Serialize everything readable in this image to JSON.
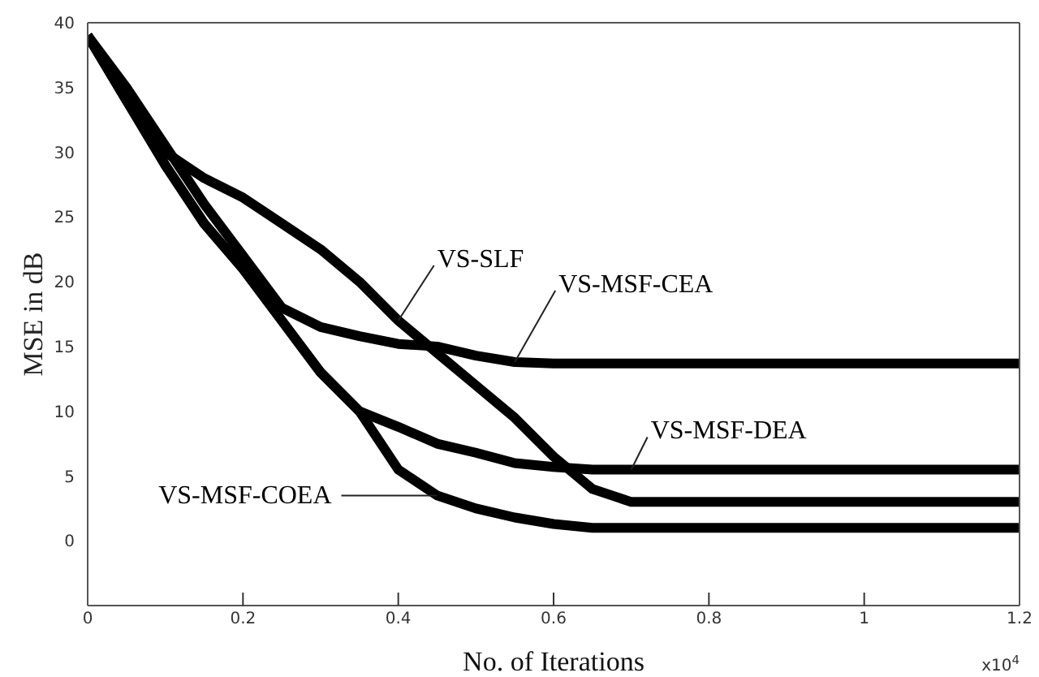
{
  "chart_data": {
    "type": "line",
    "xlabel": "No. of Iterations",
    "ylabel": "MSE in dB",
    "annotations": [
      "x10$^{4}$"
    ],
    "x": [
      0,
      0.05,
      0.1,
      0.15,
      0.2,
      0.25,
      0.3,
      0.35,
      0.4,
      0.45,
      0.5,
      0.55,
      0.6,
      0.65,
      0.7,
      0.8,
      0.9,
      1,
      1.1,
      1.2
    ],
    "series": [
      {
        "name": "VS-SLF",
        "color": "#000000",
        "values": [
          39,
          34,
          30,
          28,
          26.5,
          24.5,
          22.5,
          20,
          17,
          14.5,
          12,
          9.5,
          6.5,
          4,
          3,
          3,
          3,
          3,
          3,
          3
        ]
      },
      {
        "name": "VS-MSF-DEA",
        "color": "#000000",
        "values": [
          39,
          34,
          29,
          24.5,
          21,
          17,
          13,
          10,
          8.8,
          7.5,
          6.8,
          6,
          5.7,
          5.5,
          5.5,
          5.5,
          5.5,
          5.5,
          5.5,
          5.5
        ]
      },
      {
        "name": "VS-MSF-CEA",
        "color": "#000000",
        "values": [
          39,
          35,
          30.5,
          26,
          22,
          18,
          16.5,
          15.8,
          15.2,
          15,
          14.3,
          13.8,
          13.7,
          13.7,
          13.7,
          13.7,
          13.7,
          13.7,
          13.7,
          13.7
        ]
      },
      {
        "name": "VS-MSF-COEA",
        "color": "#000000",
        "values": [
          39,
          34,
          29,
          24.5,
          21,
          17,
          13,
          10,
          5.5,
          3.5,
          2.5,
          1.8,
          1.3,
          1,
          1,
          1,
          1,
          1,
          1,
          1
        ]
      }
    ],
    "xlim": [
      0,
      1.2
    ],
    "xticks": [
      0,
      0.2,
      0.4,
      0.6,
      0.8,
      1,
      1.2
    ],
    "ylim": [
      -5,
      40
    ],
    "yticks": [
      0,
      5,
      10,
      15,
      20,
      25,
      30,
      35,
      40
    ],
    "grid": false,
    "legend": false
  }
}
